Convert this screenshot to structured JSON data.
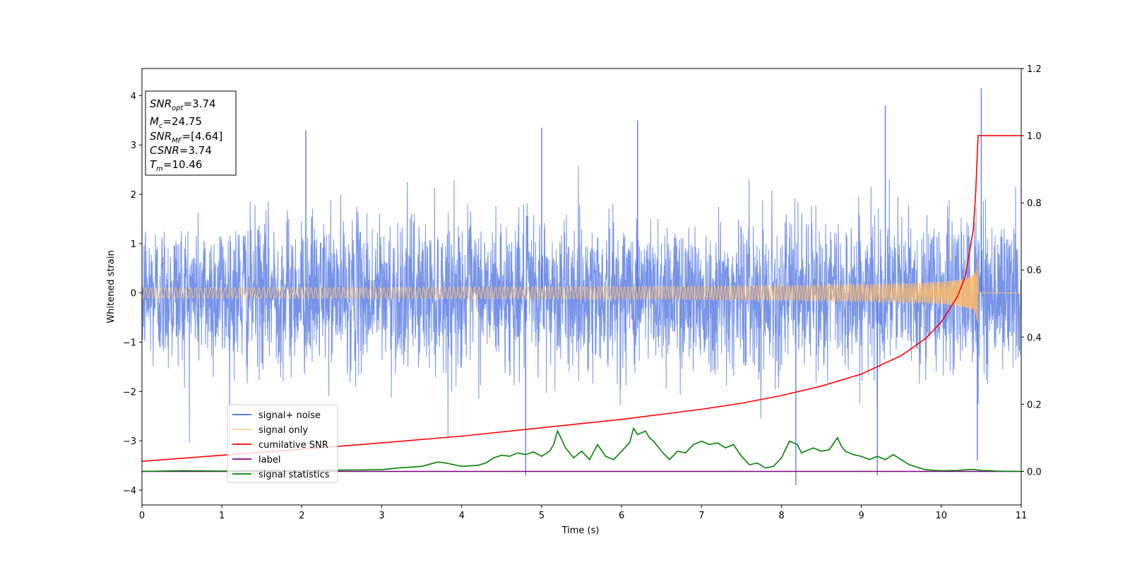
{
  "chart_data": {
    "type": "line",
    "xlabel": "Time (s)",
    "ylabel": "Whitened strain",
    "xlim": [
      0,
      11
    ],
    "ylim_left": [
      -4.3,
      4.55
    ],
    "ylim_right": [
      -0.1,
      1.2
    ],
    "x_ticks": [
      "0",
      "1",
      "2",
      "3",
      "4",
      "5",
      "6",
      "7",
      "8",
      "9",
      "10",
      "11"
    ],
    "y_left_ticks": [
      "−4",
      "−3",
      "−2",
      "−1",
      "0",
      "1",
      "2",
      "3",
      "4"
    ],
    "y_right_ticks": [
      "0.0",
      "0.2",
      "0.4",
      "0.6",
      "0.8",
      "1.0",
      "1.2"
    ],
    "grid": false,
    "legend_position": "lower-left",
    "annotation": {
      "snr_opt": {
        "label": "SNR",
        "sub": "opt",
        "value": "=3.74"
      },
      "mc": {
        "label": "M",
        "sub": "c",
        "value": "=24.75"
      },
      "snr_mf": {
        "label": "SNR",
        "sub": "MF",
        "value": "=[4.64]"
      },
      "csnr": {
        "label": "CSNR",
        "value": "=3.74"
      },
      "tm": {
        "label": "T",
        "sub": "m",
        "value": "=10.46"
      }
    },
    "series": [
      {
        "name": "signal+ noise",
        "axis": "left",
        "color": "#4169e1",
        "description_values": {
          "typical_envelope": [
            -1.6,
            1.6
          ],
          "notable_spikes": [
            {
              "x": 2.05,
              "y": 3.3
            },
            {
              "x": 4.8,
              "y": -3.7
            },
            {
              "x": 5.0,
              "y": 3.35
            },
            {
              "x": 6.2,
              "y": 3.5
            },
            {
              "x": 8.18,
              "y": -3.9
            },
            {
              "x": 9.2,
              "y": -3.7
            },
            {
              "x": 9.3,
              "y": 3.8
            },
            {
              "x": 10.5,
              "y": 4.15
            },
            {
              "x": 10.45,
              "y": -3.4
            }
          ]
        }
      },
      {
        "name": "signal only",
        "axis": "left",
        "color": "#ffbb66",
        "chirp": {
          "start": 0.0,
          "merger": 10.46,
          "peak_amplitude": 0.75
        }
      },
      {
        "name": "cumilative SNR",
        "axis": "right",
        "color": "#ff0000",
        "x": [
          0,
          1,
          2,
          3,
          4,
          5,
          6,
          7,
          7.5,
          8,
          8.5,
          9,
          9.5,
          9.8,
          10.0,
          10.2,
          10.3,
          10.4,
          10.43,
          10.46,
          10.5,
          11
        ],
        "values": [
          0.03,
          0.048,
          0.066,
          0.085,
          0.105,
          0.13,
          0.155,
          0.185,
          0.203,
          0.226,
          0.254,
          0.29,
          0.345,
          0.395,
          0.445,
          0.52,
          0.58,
          0.72,
          0.83,
          1.0,
          1.0,
          1.0
        ]
      },
      {
        "name": "label",
        "axis": "right",
        "color": "#800080",
        "x": [
          0,
          11
        ],
        "values": [
          0,
          0
        ]
      },
      {
        "name": "signal statistics",
        "axis": "right",
        "color": "#008000",
        "x": [
          0,
          0.5,
          1,
          1.5,
          2,
          2.5,
          3,
          3.2,
          3.5,
          3.7,
          3.8,
          4.0,
          4.2,
          4.3,
          4.4,
          4.5,
          4.6,
          4.7,
          4.8,
          4.9,
          5.0,
          5.1,
          5.15,
          5.2,
          5.3,
          5.4,
          5.5,
          5.6,
          5.7,
          5.8,
          5.9,
          6.0,
          6.1,
          6.15,
          6.2,
          6.3,
          6.35,
          6.4,
          6.5,
          6.6,
          6.7,
          6.8,
          6.9,
          7.0,
          7.1,
          7.2,
          7.3,
          7.4,
          7.5,
          7.6,
          7.7,
          7.8,
          7.9,
          8.0,
          8.1,
          8.2,
          8.25,
          8.3,
          8.4,
          8.5,
          8.6,
          8.7,
          8.75,
          8.8,
          8.9,
          9.0,
          9.1,
          9.2,
          9.3,
          9.4,
          9.6,
          9.8,
          10.0,
          10.2,
          10.4,
          10.5,
          10.7,
          11
        ],
        "values": [
          0.0,
          0.002,
          0.001,
          0.003,
          0.002,
          0.004,
          0.005,
          0.01,
          0.015,
          0.028,
          0.025,
          0.015,
          0.018,
          0.025,
          0.04,
          0.048,
          0.045,
          0.055,
          0.05,
          0.058,
          0.045,
          0.06,
          0.08,
          0.12,
          0.07,
          0.04,
          0.06,
          0.035,
          0.08,
          0.045,
          0.035,
          0.06,
          0.085,
          0.128,
          0.11,
          0.12,
          0.1,
          0.09,
          0.06,
          0.035,
          0.06,
          0.055,
          0.08,
          0.09,
          0.08,
          0.085,
          0.07,
          0.08,
          0.045,
          0.02,
          0.025,
          0.01,
          0.015,
          0.04,
          0.09,
          0.08,
          0.055,
          0.06,
          0.07,
          0.06,
          0.065,
          0.1,
          0.075,
          0.06,
          0.05,
          0.045,
          0.035,
          0.045,
          0.035,
          0.05,
          0.02,
          0.005,
          0.002,
          0.003,
          0.006,
          0.003,
          0.001,
          0.0
        ]
      }
    ]
  }
}
